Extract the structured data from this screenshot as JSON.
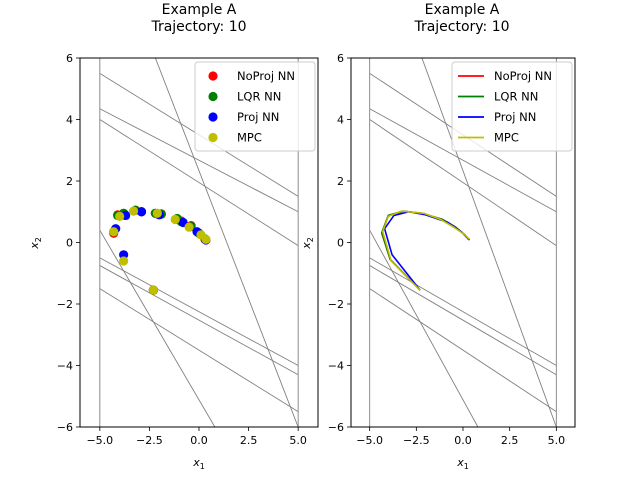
{
  "chart_data": [
    {
      "type": "scatter",
      "title": "Example A",
      "subtitle": "Trajectory: 10",
      "xlabel": "x1",
      "ylabel": "x2",
      "xlim": [
        -6,
        6
      ],
      "ylim": [
        -6,
        6
      ],
      "xticks": [
        "-5.0",
        "-2.5",
        "0.0",
        "2.5",
        "5.0"
      ],
      "yticks": [
        "-6",
        "-4",
        "-2",
        "0",
        "2",
        "4",
        "6"
      ],
      "grid": false,
      "legend_position": "top-right",
      "constraints": [
        [
          [
            -5,
            6
          ],
          [
            -5,
            -6
          ]
        ],
        [
          [
            5,
            6
          ],
          [
            5,
            -6
          ]
        ],
        [
          [
            -5,
            5.5
          ],
          [
            5,
            1.5
          ]
        ],
        [
          [
            -5,
            4.35
          ],
          [
            5,
            1.0
          ]
        ],
        [
          [
            -5,
            4.0
          ],
          [
            5,
            -0.1
          ]
        ],
        [
          [
            -2.2,
            6
          ],
          [
            5,
            -6
          ]
        ],
        [
          [
            -5,
            -0.5
          ],
          [
            5,
            -4.0
          ]
        ],
        [
          [
            -5,
            -0.75
          ],
          [
            5,
            -4.3
          ]
        ],
        [
          [
            -5,
            -1.5
          ],
          [
            5,
            -5.5
          ]
        ],
        [
          [
            -5,
            0.4
          ],
          [
            0.8,
            -6
          ]
        ]
      ],
      "series": [
        {
          "name": "NoProj NN",
          "color": "#ff0000",
          "x": [
            -2.3,
            -4.3,
            -4.1,
            -3.8,
            -3.2,
            -2.9,
            -2.2,
            -1.9,
            -1.1,
            -0.9,
            -0.4,
            0.0,
            0.3
          ],
          "y": [
            -1.55,
            0.3,
            0.9,
            0.95,
            1.05,
            1.0,
            0.95,
            0.93,
            0.75,
            0.7,
            0.55,
            0.3,
            0.1
          ]
        },
        {
          "name": "LQR NN",
          "color": "#008000",
          "x": [
            -2.3,
            -4.3,
            -4.1,
            -3.8,
            -3.2,
            -2.9,
            -2.2,
            -1.9,
            -1.1,
            -0.9,
            -0.4,
            0.0,
            0.3
          ],
          "y": [
            -1.55,
            0.35,
            0.88,
            0.95,
            1.05,
            1.0,
            0.95,
            0.92,
            0.78,
            0.68,
            0.52,
            0.3,
            0.12
          ]
        },
        {
          "name": "Proj NN",
          "color": "#0000ff",
          "x": [
            -2.3,
            -3.8,
            -4.2,
            -3.7,
            -2.9,
            -2.0,
            -0.8,
            -0.1,
            0.35
          ],
          "y": [
            -1.55,
            -0.4,
            0.45,
            0.88,
            1.0,
            0.9,
            0.65,
            0.35,
            0.08
          ]
        },
        {
          "name": "MPC",
          "color": "#bfbf00",
          "x": [
            -2.3,
            -3.8,
            -4.3,
            -4.0,
            -3.3,
            -2.1,
            -1.2,
            -0.5,
            0.1,
            0.35
          ],
          "y": [
            -1.55,
            -0.6,
            0.35,
            0.85,
            1.02,
            0.95,
            0.75,
            0.5,
            0.25,
            0.1
          ]
        }
      ]
    },
    {
      "type": "line",
      "title": "Example A",
      "subtitle": "Trajectory: 10",
      "xlabel": "x1",
      "ylabel": "x2",
      "xlim": [
        -6,
        6
      ],
      "ylim": [
        -6,
        6
      ],
      "xticks": [
        "-5.0",
        "-2.5",
        "0.0",
        "2.5",
        "5.0"
      ],
      "yticks": [
        "-6",
        "-4",
        "-2",
        "0",
        "2",
        "4",
        "6"
      ],
      "grid": false,
      "legend_position": "top-right",
      "series": [
        {
          "name": "NoProj NN",
          "color": "#ff0000",
          "x": [
            -2.3,
            -3.9,
            -4.35,
            -4.0,
            -3.2,
            -2.2,
            -1.1,
            -0.4,
            0.1,
            0.3
          ],
          "y": [
            -1.55,
            -0.55,
            0.3,
            0.88,
            1.02,
            0.95,
            0.75,
            0.5,
            0.25,
            0.1
          ]
        },
        {
          "name": "LQR NN",
          "color": "#008000",
          "x": [
            -2.3,
            -3.9,
            -4.35,
            -4.0,
            -3.2,
            -2.2,
            -1.1,
            -0.4,
            0.1,
            0.3
          ],
          "y": [
            -1.55,
            -0.55,
            0.32,
            0.88,
            1.02,
            0.95,
            0.75,
            0.5,
            0.25,
            0.1
          ]
        },
        {
          "name": "Proj NN",
          "color": "#0000ff",
          "x": [
            -2.3,
            -3.8,
            -4.2,
            -3.7,
            -2.9,
            -2.0,
            -0.8,
            -0.1,
            0.35
          ],
          "y": [
            -1.55,
            -0.4,
            0.45,
            0.88,
            1.0,
            0.9,
            0.65,
            0.35,
            0.08
          ]
        },
        {
          "name": "MPC",
          "color": "#bfbf00",
          "x": [
            -2.3,
            -3.85,
            -4.3,
            -4.0,
            -3.3,
            -2.1,
            -1.2,
            -0.5,
            0.1,
            0.35
          ],
          "y": [
            -1.55,
            -0.6,
            0.35,
            0.85,
            1.02,
            0.95,
            0.75,
            0.5,
            0.25,
            0.1
          ]
        }
      ]
    }
  ]
}
